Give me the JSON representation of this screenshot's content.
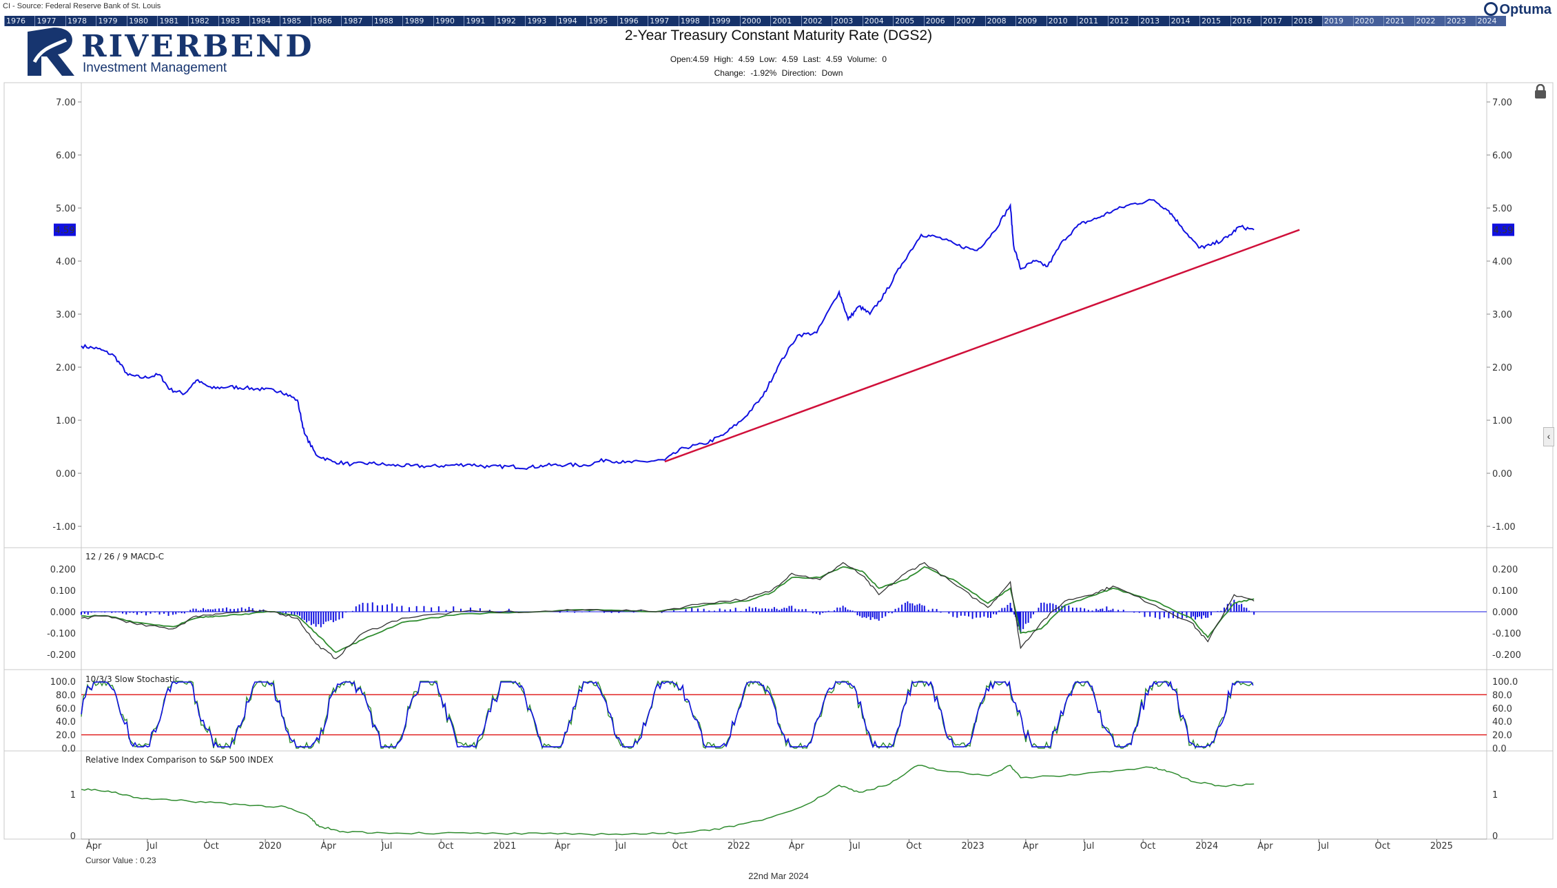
{
  "source": "CI - Source: Federal Reserve Bank of St. Louis",
  "year_bar": [
    "1976",
    "1977",
    "1978",
    "1979",
    "1980",
    "1981",
    "1982",
    "1983",
    "1984",
    "1985",
    "1986",
    "1987",
    "1988",
    "1989",
    "1990",
    "1991",
    "1992",
    "1993",
    "1994",
    "1995",
    "1996",
    "1997",
    "1998",
    "1999",
    "2000",
    "2001",
    "2002",
    "2003",
    "2004",
    "2005",
    "2006",
    "2007",
    "2008",
    "2009",
    "2010",
    "2011",
    "2012",
    "2013",
    "2014",
    "2015",
    "2016",
    "2017",
    "2018",
    "2019",
    "2020",
    "2021",
    "2022",
    "2023",
    "2024"
  ],
  "brand": {
    "name": "Optuma",
    "logo_name": "RIVERBEND",
    "logo_sub": "Investment Management",
    "color": "#17356f"
  },
  "title": "2-Year Treasury Constant Maturity Rate (DGS2)",
  "ohlc": "Open:4.59   High: 4.59   Low: 4.59   Last: 4.59   Volume: 0",
  "change": "Change: -1.92%   Direction: Down",
  "last_value_label": "4.59",
  "panel_labels": {
    "macd": "12 / 26 / 9 MACD-C",
    "stoch": "10/3/3 Slow Stochastic",
    "rel": "Relative Index Comparison to S&P 500 INDEX"
  },
  "cursor_value": "Cursor Value : 0.23",
  "footer_date": "22nd Mar 2024",
  "colors": {
    "price": "#1010e0",
    "trend": "#d0103a",
    "signal": "#2e8b2e",
    "stoch_line": "#e02020",
    "rel": "#2e8b2e",
    "histogram": "#1010e0"
  },
  "chart_data": [
    {
      "type": "line",
      "name": "price",
      "title": "2-Year Treasury Constant Maturity Rate (DGS2)",
      "x_ticks": [
        "Apr",
        "Jul",
        "Oct",
        "2020",
        "Apr",
        "Jul",
        "Oct",
        "2021",
        "Apr",
        "Jul",
        "Oct",
        "2022",
        "Apr",
        "Jul",
        "Oct",
        "2023",
        "Apr",
        "Jul",
        "Oct",
        "2024",
        "Apr",
        "Jul",
        "Oct",
        "2025"
      ],
      "x_tick_dates": [
        "2019-04-01",
        "2019-07-01",
        "2019-10-01",
        "2020-01-01",
        "2020-04-01",
        "2020-07-01",
        "2020-10-01",
        "2021-01-01",
        "2021-04-01",
        "2021-07-01",
        "2021-10-01",
        "2022-01-01",
        "2022-04-01",
        "2022-07-01",
        "2022-10-01",
        "2023-01-01",
        "2023-04-01",
        "2023-07-01",
        "2023-10-01",
        "2024-01-01",
        "2024-04-01",
        "2024-07-01",
        "2024-10-01",
        "2025-01-01"
      ],
      "y_ticks": [
        "7.00",
        "6.00",
        "5.00",
        "4.00",
        "3.00",
        "2.00",
        "1.00",
        "0.00",
        "-1.00"
      ],
      "ylim": [
        -1.4,
        7.4
      ],
      "xlim": [
        "2019-03-20",
        "2025-03-20"
      ],
      "dates": [
        "2019-03-20",
        "2019-04-15",
        "2019-05-10",
        "2019-06-01",
        "2019-06-25",
        "2019-07-20",
        "2019-08-05",
        "2019-08-28",
        "2019-09-15",
        "2019-10-10",
        "2019-11-05",
        "2019-12-01",
        "2019-12-30",
        "2020-01-25",
        "2020-02-20",
        "2020-03-02",
        "2020-03-20",
        "2020-04-15",
        "2020-05-15",
        "2020-06-15",
        "2020-07-15",
        "2020-08-15",
        "2020-09-15",
        "2020-10-15",
        "2020-11-15",
        "2020-12-15",
        "2021-01-15",
        "2021-02-15",
        "2021-03-15",
        "2021-04-15",
        "2021-05-15",
        "2021-06-15",
        "2021-07-15",
        "2021-08-15",
        "2021-09-15",
        "2021-10-15",
        "2021-11-15",
        "2021-12-15",
        "2022-01-15",
        "2022-02-15",
        "2022-03-10",
        "2022-04-10",
        "2022-05-10",
        "2022-06-14",
        "2022-06-28",
        "2022-07-15",
        "2022-08-01",
        "2022-08-25",
        "2022-09-20",
        "2022-10-20",
        "2022-11-15",
        "2022-12-15",
        "2023-01-15",
        "2023-02-10",
        "2023-03-08",
        "2023-03-13",
        "2023-03-24",
        "2023-04-15",
        "2023-05-05",
        "2023-05-30",
        "2023-06-25",
        "2023-07-20",
        "2023-08-15",
        "2023-09-15",
        "2023-10-18",
        "2023-11-10",
        "2023-11-30",
        "2023-12-27",
        "2024-01-15",
        "2024-02-10",
        "2024-02-28",
        "2024-03-22"
      ],
      "values": [
        2.4,
        2.35,
        2.22,
        1.85,
        1.8,
        1.86,
        1.58,
        1.5,
        1.75,
        1.6,
        1.63,
        1.61,
        1.58,
        1.55,
        1.38,
        0.75,
        0.35,
        0.22,
        0.17,
        0.19,
        0.15,
        0.14,
        0.13,
        0.15,
        0.17,
        0.12,
        0.13,
        0.11,
        0.15,
        0.16,
        0.15,
        0.26,
        0.2,
        0.22,
        0.25,
        0.48,
        0.55,
        0.72,
        1.02,
        1.45,
        2.0,
        2.6,
        2.65,
        3.42,
        2.9,
        3.15,
        3.0,
        3.4,
        3.95,
        4.5,
        4.45,
        4.3,
        4.2,
        4.55,
        5.05,
        4.3,
        3.85,
        4.0,
        3.9,
        4.4,
        4.7,
        4.8,
        4.95,
        5.08,
        5.15,
        4.95,
        4.65,
        4.25,
        4.3,
        4.45,
        4.65,
        4.59
      ],
      "trendline": {
        "dates": [
          "2021-09-15",
          "2024-06-01"
        ],
        "values": [
          0.22,
          4.59
        ]
      }
    },
    {
      "type": "bar",
      "name": "macd",
      "title": "12 / 26 / 9 MACD-C",
      "y_ticks": [
        "0.200",
        "0.100",
        "0.000",
        "-0.100",
        "-0.200"
      ],
      "ylim": [
        -0.26,
        0.25
      ],
      "dates": [
        "2019-03-20",
        "2019-05-01",
        "2019-06-15",
        "2019-08-10",
        "2019-09-15",
        "2019-10-15",
        "2019-12-01",
        "2020-01-15",
        "2020-02-20",
        "2020-03-20",
        "2020-04-20",
        "2020-06-01",
        "2020-08-01",
        "2020-11-01",
        "2021-03-01",
        "2021-06-01",
        "2021-09-01",
        "2021-11-15",
        "2022-01-20",
        "2022-03-01",
        "2022-04-01",
        "2022-05-15",
        "2022-06-20",
        "2022-07-20",
        "2022-08-15",
        "2022-09-25",
        "2022-10-25",
        "2022-12-15",
        "2023-02-01",
        "2023-03-08",
        "2023-03-24",
        "2023-04-25",
        "2023-06-01",
        "2023-07-20",
        "2023-08-15",
        "2023-10-20",
        "2023-12-15",
        "2024-01-10",
        "2024-02-20",
        "2024-03-22"
      ],
      "values": [
        -0.03,
        -0.02,
        -0.06,
        -0.08,
        -0.02,
        -0.01,
        0.0,
        0.0,
        -0.03,
        -0.15,
        -0.22,
        -0.1,
        -0.03,
        0.0,
        0.0,
        0.01,
        0.0,
        0.04,
        0.06,
        0.1,
        0.18,
        0.15,
        0.23,
        0.17,
        0.08,
        0.18,
        0.23,
        0.12,
        0.02,
        0.14,
        -0.17,
        -0.05,
        0.05,
        0.09,
        0.12,
        0.03,
        -0.05,
        -0.14,
        0.08,
        0.05
      ],
      "signal_values": [
        -0.02,
        -0.02,
        -0.05,
        -0.07,
        -0.03,
        -0.02,
        -0.01,
        0.0,
        -0.02,
        -0.1,
        -0.19,
        -0.13,
        -0.05,
        -0.01,
        0.0,
        0.01,
        0.0,
        0.03,
        0.05,
        0.09,
        0.16,
        0.16,
        0.21,
        0.19,
        0.11,
        0.15,
        0.21,
        0.14,
        0.04,
        0.11,
        -0.1,
        -0.08,
        0.03,
        0.08,
        0.11,
        0.05,
        -0.03,
        -0.12,
        0.04,
        0.06
      ]
    },
    {
      "type": "line",
      "name": "stochastic",
      "title": "10/3/3 Slow Stochastic",
      "y_ticks": [
        "100.0",
        "80.0",
        "60.0",
        "40.0",
        "20.0",
        "0.0"
      ],
      "ylim": [
        0,
        100
      ],
      "reference_lines": [
        80,
        20
      ]
    },
    {
      "type": "line",
      "name": "relative",
      "title": "Relative Index Comparison to S&P 500 INDEX",
      "y_ticks": [
        "1",
        "0"
      ],
      "ylim": [
        0,
        2.0
      ],
      "dates": [
        "2019-03-20",
        "2019-05-01",
        "2019-06-15",
        "2019-08-15",
        "2019-10-15",
        "2019-12-15",
        "2020-02-01",
        "2020-03-10",
        "2020-03-25",
        "2020-05-01",
        "2020-07-01",
        "2020-10-01",
        "2021-01-01",
        "2021-04-01",
        "2021-07-01",
        "2021-09-15",
        "2021-11-01",
        "2022-01-01",
        "2022-03-01",
        "2022-05-01",
        "2022-06-14",
        "2022-07-15",
        "2022-09-01",
        "2022-10-15",
        "2022-12-01",
        "2023-02-01",
        "2023-03-08",
        "2023-03-24",
        "2023-06-01",
        "2023-08-01",
        "2023-10-15",
        "2023-11-10",
        "2023-12-20",
        "2024-02-01",
        "2024-03-22"
      ],
      "values": [
        1.12,
        1.08,
        0.92,
        0.85,
        0.8,
        0.73,
        0.7,
        0.45,
        0.22,
        0.1,
        0.07,
        0.06,
        0.05,
        0.04,
        0.04,
        0.05,
        0.1,
        0.22,
        0.45,
        0.8,
        1.22,
        1.05,
        1.25,
        1.7,
        1.55,
        1.45,
        1.7,
        1.4,
        1.45,
        1.55,
        1.65,
        1.55,
        1.3,
        1.2,
        1.25
      ]
    }
  ]
}
